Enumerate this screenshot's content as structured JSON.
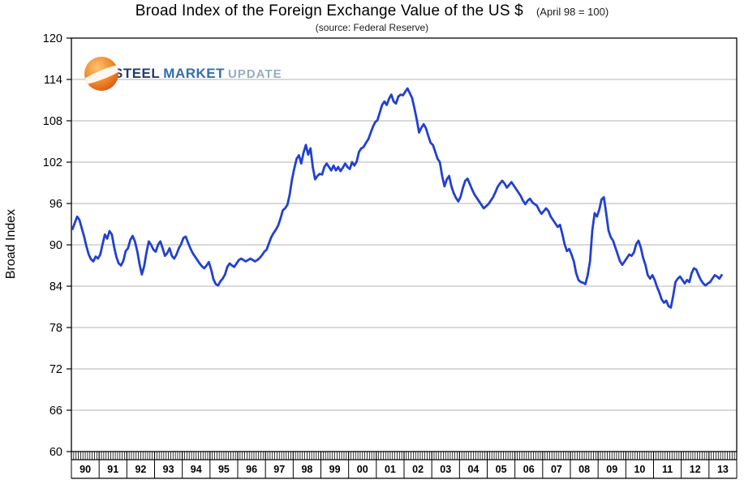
{
  "header": {
    "title": "Broad Index of the Foreign Exchange Value of the US $",
    "title_note": "(April 98 = 100)",
    "subtitle": "(source: Federal Reserve)"
  },
  "y_axis_label": "Broad Index",
  "logo": {
    "steel": "STEEL",
    "market": "MARKET",
    "update": "UPDATE"
  },
  "colors": {
    "line": "#2240d0",
    "grid": "#b3b3b3",
    "axis": "#000000",
    "logo_orange": "#ef7d1a",
    "logo_navy": "#16335f",
    "logo_blue": "#2a66a8",
    "logo_light_blue": "#8fa8c6"
  },
  "chart_data": {
    "type": "line",
    "title": "Broad Index of the Foreign Exchange Value of the US $",
    "subtitle": "(source: Federal Reserve)",
    "note": "(April 98 = 100)",
    "xlabel": "",
    "ylabel": "Broad Index",
    "ylim": [
      60,
      120
    ],
    "yticks": [
      60,
      66,
      72,
      78,
      84,
      90,
      96,
      102,
      108,
      114,
      120
    ],
    "grid": "horizontal",
    "legend": "none",
    "x_years": [
      "90",
      "91",
      "92",
      "93",
      "94",
      "95",
      "96",
      "97",
      "98",
      "99",
      "00",
      "01",
      "02",
      "03",
      "04",
      "05",
      "06",
      "07",
      "08",
      "09",
      "10",
      "11",
      "12",
      "13"
    ],
    "points_per_year": 12,
    "x_frequency": "monthly",
    "series": [
      {
        "name": "Broad Index of the Foreign Exchange Value of the US $",
        "color": "#2240d0",
        "values": [
          92.3,
          93.2,
          94.1,
          93.6,
          92.4,
          91.2,
          89.8,
          88.6,
          87.9,
          87.6,
          88.3,
          88.0,
          88.6,
          90.1,
          91.5,
          90.9,
          92.0,
          91.5,
          89.7,
          88.2,
          87.3,
          87.0,
          87.7,
          89.1,
          89.5,
          90.7,
          91.3,
          90.5,
          89.1,
          87.2,
          85.7,
          86.9,
          88.9,
          90.5,
          90.0,
          89.3,
          89.0,
          90.0,
          90.5,
          89.5,
          88.4,
          88.8,
          89.5,
          88.4,
          88.0,
          88.6,
          89.5,
          90.1,
          91.0,
          91.2,
          90.3,
          89.5,
          88.8,
          88.3,
          87.8,
          87.3,
          86.9,
          86.6,
          87.0,
          87.5,
          86.4,
          85.0,
          84.3,
          84.1,
          84.7,
          85.1,
          85.7,
          86.8,
          87.3,
          87.0,
          86.8,
          87.3,
          87.8,
          88.0,
          87.8,
          87.6,
          87.8,
          88.0,
          87.8,
          87.6,
          87.8,
          88.1,
          88.5,
          89.0,
          89.3,
          90.2,
          91.1,
          91.7,
          92.2,
          92.8,
          93.8,
          95.0,
          95.3,
          95.8,
          97.3,
          99.5,
          101.1,
          102.5,
          103.0,
          101.8,
          103.4,
          104.5,
          103.1,
          104.0,
          101.3,
          99.5,
          100.0,
          100.3,
          100.2,
          101.3,
          101.8,
          101.3,
          100.8,
          101.5,
          100.8,
          101.3,
          100.7,
          101.2,
          101.8,
          101.3,
          101.0,
          102.0,
          101.5,
          102.1,
          103.5,
          104.0,
          104.2,
          104.8,
          105.3,
          106.2,
          107.1,
          107.8,
          108.1,
          109.2,
          110.3,
          110.8,
          110.3,
          111.2,
          111.8,
          110.8,
          110.5,
          111.5,
          111.8,
          111.7,
          112.2,
          112.7,
          112.0,
          111.3,
          109.8,
          108.2,
          106.3,
          107.0,
          107.5,
          106.9,
          105.8,
          104.8,
          104.5,
          103.5,
          102.5,
          102.0,
          100.0,
          98.5,
          99.5,
          100.0,
          98.5,
          97.5,
          96.8,
          96.3,
          97.0,
          98.3,
          99.3,
          99.6,
          98.8,
          98.0,
          97.3,
          96.8,
          96.3,
          95.8,
          95.3,
          95.6,
          95.9,
          96.4,
          96.9,
          97.6,
          98.4,
          98.9,
          99.3,
          98.9,
          98.3,
          98.7,
          99.1,
          98.6,
          98.1,
          97.6,
          97.1,
          96.4,
          95.9,
          96.4,
          96.7,
          96.2,
          95.9,
          95.7,
          95.0,
          94.5,
          94.9,
          95.3,
          94.9,
          94.1,
          93.6,
          93.1,
          92.6,
          92.9,
          91.6,
          90.1,
          89.1,
          89.4,
          88.6,
          87.6,
          85.9,
          84.9,
          84.6,
          84.5,
          84.3,
          85.6,
          87.6,
          92.1,
          94.6,
          94.1,
          95.1,
          96.6,
          96.9,
          94.6,
          92.1,
          91.1,
          90.6,
          89.6,
          88.6,
          87.6,
          87.1,
          87.6,
          88.1,
          88.6,
          88.4,
          88.9,
          90.1,
          90.6,
          89.6,
          88.1,
          87.1,
          85.6,
          85.1,
          85.6,
          84.9,
          83.9,
          83.1,
          82.1,
          81.6,
          81.9,
          81.1,
          80.9,
          82.6,
          84.6,
          85.1,
          85.4,
          84.9,
          84.4,
          84.9,
          84.6,
          85.9,
          86.6,
          86.4,
          85.6,
          84.9,
          84.4,
          84.1,
          84.4,
          84.6,
          85.1,
          85.6,
          85.4,
          85.1,
          85.6
        ]
      }
    ]
  }
}
